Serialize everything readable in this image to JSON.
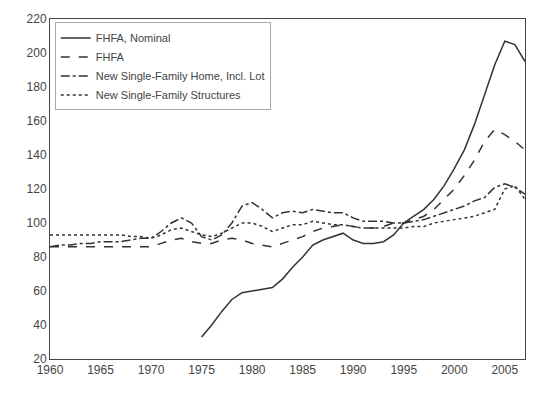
{
  "chart_data": {
    "type": "line",
    "x": [
      1960,
      1961,
      1962,
      1963,
      1964,
      1965,
      1966,
      1967,
      1968,
      1969,
      1970,
      1971,
      1972,
      1973,
      1974,
      1975,
      1976,
      1977,
      1978,
      1979,
      1980,
      1981,
      1982,
      1983,
      1984,
      1985,
      1986,
      1987,
      1988,
      1989,
      1990,
      1991,
      1992,
      1993,
      1994,
      1995,
      1996,
      1997,
      1998,
      1999,
      2000,
      2001,
      2002,
      2003,
      2004,
      2005,
      2006,
      2007
    ],
    "series": [
      {
        "name": "FHFA, Nominal",
        "color": "#333333",
        "line_style": "solid",
        "values": [
          null,
          null,
          null,
          null,
          null,
          null,
          null,
          null,
          null,
          null,
          null,
          null,
          null,
          null,
          null,
          33,
          40,
          48,
          55,
          59,
          60,
          61,
          62,
          67,
          74,
          80,
          87,
          90,
          92,
          94,
          90,
          88,
          88,
          89,
          93,
          100,
          104,
          108,
          114,
          122,
          132,
          143,
          158,
          175,
          193,
          207,
          205,
          195
        ]
      },
      {
        "name": "FHFA",
        "color": "#333333",
        "line_style": "dashed",
        "values": [
          86,
          86,
          86,
          86,
          86,
          86,
          86,
          86,
          86,
          86,
          86,
          88,
          90,
          91,
          89,
          88,
          88,
          90,
          91,
          90,
          88,
          87,
          86,
          88,
          90,
          92,
          95,
          97,
          98,
          99,
          98,
          97,
          97,
          98,
          100,
          100,
          102,
          104,
          108,
          114,
          120,
          128,
          137,
          148,
          155,
          152,
          148,
          143
        ]
      },
      {
        "name": "New Single-Family Home, Incl. Lot",
        "color": "#333333",
        "line_style": "dashdot",
        "values": [
          86,
          87,
          87,
          88,
          88,
          89,
          89,
          89,
          90,
          91,
          91,
          95,
          100,
          103,
          100,
          92,
          90,
          93,
          100,
          110,
          112,
          108,
          103,
          106,
          107,
          106,
          108,
          107,
          106,
          106,
          103,
          101,
          101,
          101,
          100,
          100,
          101,
          102,
          104,
          106,
          108,
          110,
          113,
          115,
          121,
          123,
          121,
          117
        ]
      },
      {
        "name": "New Single-Family Structures",
        "color": "#333333",
        "line_style": "dotted",
        "values": [
          93,
          93,
          93,
          93,
          93,
          93,
          93,
          93,
          92,
          92,
          91,
          93,
          96,
          97,
          95,
          93,
          92,
          94,
          97,
          100,
          100,
          98,
          95,
          97,
          99,
          99,
          101,
          100,
          99,
          99,
          98,
          97,
          97,
          97,
          97,
          97,
          98,
          98,
          100,
          101,
          102,
          103,
          104,
          106,
          108,
          120,
          122,
          114
        ]
      }
    ],
    "xlim": [
      1960,
      2007
    ],
    "xticks": [
      1960,
      1965,
      1970,
      1975,
      1980,
      1985,
      1990,
      1995,
      2000,
      2005
    ],
    "ylim": [
      20,
      220
    ],
    "yticks": [
      20,
      40,
      60,
      80,
      100,
      120,
      140,
      160,
      180,
      200,
      220
    ],
    "grid": false,
    "legend": "upper left"
  }
}
